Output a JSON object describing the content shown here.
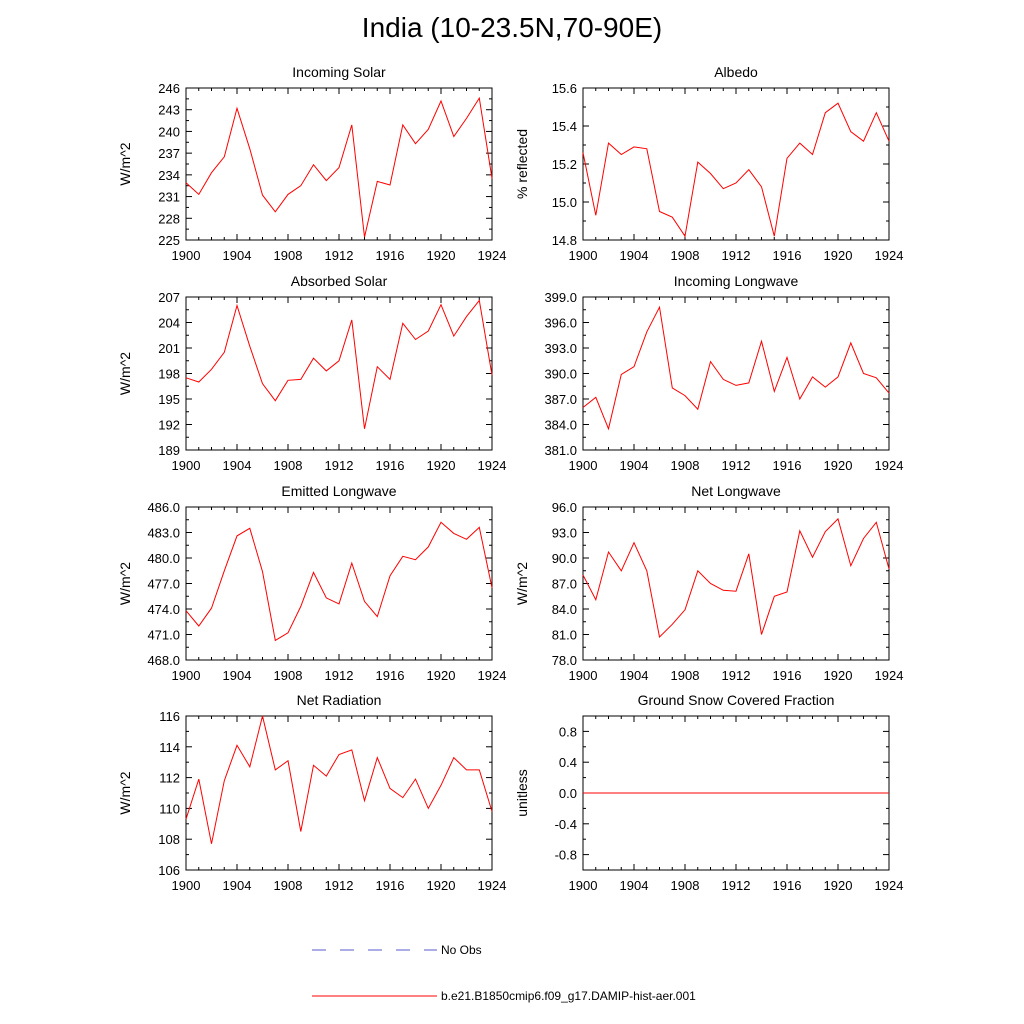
{
  "title": "India (10-23.5N,70-90E)",
  "legend": {
    "obs_label": "No Obs",
    "obs_color": "#5a5acd",
    "model_label": "b.e21.B1850cmip6.f09_g17.DAMIP-hist-aer.001",
    "model_color": "#ff0000"
  },
  "chart_data": [
    {
      "type": "line",
      "title": "Incoming Solar",
      "ylabel": "W/m^2",
      "xlabel": "",
      "xlim": [
        1900,
        1924
      ],
      "ylim": [
        225,
        246
      ],
      "xticks": [
        "1900",
        "1904",
        "1908",
        "1912",
        "1916",
        "1920",
        "1924"
      ],
      "yticks": [
        "225",
        "228",
        "231",
        "234",
        "237",
        "240",
        "243",
        "246"
      ],
      "series": [
        {
          "name": "b.e21.B1850cmip6.f09_g17.DAMIP-hist-aer.001",
          "color": "#ff0000",
          "x": [
            1900,
            1901,
            1902,
            1903,
            1904,
            1905,
            1906,
            1907,
            1908,
            1909,
            1910,
            1911,
            1912,
            1913,
            1914,
            1915,
            1916,
            1917,
            1918,
            1919,
            1920,
            1921,
            1922,
            1923,
            1924
          ],
          "y": [
            232.9,
            231.3,
            234.3,
            236.5,
            243.2,
            237.6,
            231.2,
            228.9,
            231.3,
            232.5,
            235.4,
            233.2,
            235.0,
            240.9,
            225.4,
            233.1,
            232.6,
            240.9,
            238.3,
            240.3,
            244.2,
            239.3,
            241.8,
            244.6,
            233.5
          ]
        }
      ]
    },
    {
      "type": "line",
      "title": "Albedo",
      "ylabel": "% reflected",
      "xlabel": "",
      "xlim": [
        1900,
        1924
      ],
      "ylim": [
        14.8,
        15.6
      ],
      "xticks": [
        "1900",
        "1904",
        "1908",
        "1912",
        "1916",
        "1920",
        "1924"
      ],
      "yticks": [
        "14.8",
        "15.0",
        "15.2",
        "15.4",
        "15.6"
      ],
      "series": [
        {
          "name": "b.e21.B1850cmip6.f09_g17.DAMIP-hist-aer.001",
          "color": "#ff0000",
          "x": [
            1900,
            1901,
            1902,
            1903,
            1904,
            1905,
            1906,
            1907,
            1908,
            1909,
            1910,
            1911,
            1912,
            1913,
            1914,
            1915,
            1916,
            1917,
            1918,
            1919,
            1920,
            1921,
            1922,
            1923,
            1924
          ],
          "y": [
            15.26,
            14.93,
            15.31,
            15.25,
            15.29,
            15.28,
            14.95,
            14.92,
            14.82,
            15.21,
            15.15,
            15.07,
            15.1,
            15.17,
            15.08,
            14.82,
            15.23,
            15.31,
            15.25,
            15.47,
            15.52,
            15.37,
            15.32,
            15.47,
            15.32
          ]
        }
      ]
    },
    {
      "type": "line",
      "title": "Absorbed Solar",
      "ylabel": "W/m^2",
      "xlabel": "",
      "xlim": [
        1900,
        1924
      ],
      "ylim": [
        189,
        207
      ],
      "xticks": [
        "1900",
        "1904",
        "1908",
        "1912",
        "1916",
        "1920",
        "1924"
      ],
      "yticks": [
        "189",
        "192",
        "195",
        "198",
        "201",
        "204",
        "207"
      ],
      "series": [
        {
          "name": "b.e21.B1850cmip6.f09_g17.DAMIP-hist-aer.001",
          "color": "#ff0000",
          "x": [
            1900,
            1901,
            1902,
            1903,
            1904,
            1905,
            1906,
            1907,
            1908,
            1909,
            1910,
            1911,
            1912,
            1913,
            1914,
            1915,
            1916,
            1917,
            1918,
            1919,
            1920,
            1921,
            1922,
            1923,
            1924
          ],
          "y": [
            197.5,
            197.0,
            198.5,
            200.5,
            206.0,
            201.2,
            196.8,
            194.8,
            197.2,
            197.3,
            199.8,
            198.3,
            199.5,
            204.3,
            191.5,
            198.8,
            197.3,
            203.9,
            202.0,
            203.0,
            206.1,
            202.4,
            204.7,
            206.6,
            197.8
          ]
        }
      ]
    },
    {
      "type": "line",
      "title": "Incoming Longwave",
      "ylabel": "",
      "xlabel": "",
      "xlim": [
        1900,
        1924
      ],
      "ylim": [
        381.0,
        399.0
      ],
      "xticks": [
        "1900",
        "1904",
        "1908",
        "1912",
        "1916",
        "1920",
        "1924"
      ],
      "yticks": [
        "381.0",
        "384.0",
        "387.0",
        "390.0",
        "393.0",
        "396.0",
        "399.0"
      ],
      "series": [
        {
          "name": "b.e21.B1850cmip6.f09_g17.DAMIP-hist-aer.001",
          "color": "#ff0000",
          "x": [
            1900,
            1901,
            1902,
            1903,
            1904,
            1905,
            1906,
            1907,
            1908,
            1909,
            1910,
            1911,
            1912,
            1913,
            1914,
            1915,
            1916,
            1917,
            1918,
            1919,
            1920,
            1921,
            1922,
            1923,
            1924
          ],
          "y": [
            386.0,
            387.2,
            383.5,
            389.9,
            390.8,
            394.9,
            397.8,
            388.3,
            387.4,
            385.8,
            391.4,
            389.3,
            388.6,
            388.9,
            393.8,
            387.9,
            391.9,
            387.0,
            389.6,
            388.4,
            389.6,
            393.6,
            390.0,
            389.5,
            387.7
          ]
        }
      ]
    },
    {
      "type": "line",
      "title": "Emitted Longwave",
      "ylabel": "W/m^2",
      "xlabel": "",
      "xlim": [
        1900,
        1924
      ],
      "ylim": [
        468.0,
        486.0
      ],
      "xticks": [
        "1900",
        "1904",
        "1908",
        "1912",
        "1916",
        "1920",
        "1924"
      ],
      "yticks": [
        "468.0",
        "471.0",
        "474.0",
        "477.0",
        "480.0",
        "483.0",
        "486.0"
      ],
      "series": [
        {
          "name": "b.e21.B1850cmip6.f09_g17.DAMIP-hist-aer.001",
          "color": "#ff0000",
          "x": [
            1900,
            1901,
            1902,
            1903,
            1904,
            1905,
            1906,
            1907,
            1908,
            1909,
            1910,
            1911,
            1912,
            1913,
            1914,
            1915,
            1916,
            1917,
            1918,
            1919,
            1920,
            1921,
            1922,
            1923,
            1924
          ],
          "y": [
            473.8,
            472.0,
            474.1,
            478.5,
            482.6,
            483.5,
            478.4,
            470.3,
            471.2,
            474.3,
            478.3,
            475.3,
            474.6,
            479.4,
            474.9,
            473.1,
            477.9,
            480.2,
            479.8,
            481.3,
            484.2,
            482.9,
            482.2,
            483.6,
            476.5
          ]
        }
      ]
    },
    {
      "type": "line",
      "title": "Net Longwave",
      "ylabel": "W/m^2",
      "xlabel": "",
      "xlim": [
        1900,
        1924
      ],
      "ylim": [
        78.0,
        96.0
      ],
      "xticks": [
        "1900",
        "1904",
        "1908",
        "1912",
        "1916",
        "1920",
        "1924"
      ],
      "yticks": [
        "78.0",
        "81.0",
        "84.0",
        "87.0",
        "90.0",
        "93.0",
        "96.0"
      ],
      "series": [
        {
          "name": "b.e21.B1850cmip6.f09_g17.DAMIP-hist-aer.001",
          "color": "#ff0000",
          "x": [
            1900,
            1901,
            1902,
            1903,
            1904,
            1905,
            1906,
            1907,
            1908,
            1909,
            1910,
            1911,
            1912,
            1913,
            1914,
            1915,
            1916,
            1917,
            1918,
            1919,
            1920,
            1921,
            1922,
            1923,
            1924
          ],
          "y": [
            88.0,
            85.1,
            90.7,
            88.5,
            91.8,
            88.5,
            80.7,
            82.2,
            83.9,
            88.5,
            87.0,
            86.2,
            86.1,
            90.5,
            81.0,
            85.5,
            86.0,
            93.2,
            90.1,
            93.1,
            94.6,
            89.1,
            92.3,
            94.2,
            88.7
          ]
        }
      ]
    },
    {
      "type": "line",
      "title": "Net Radiation",
      "ylabel": "W/m^2",
      "xlabel": "",
      "xlim": [
        1900,
        1924
      ],
      "ylim": [
        106,
        116
      ],
      "xticks": [
        "1900",
        "1904",
        "1908",
        "1912",
        "1916",
        "1920",
        "1924"
      ],
      "yticks": [
        "106",
        "108",
        "110",
        "112",
        "114",
        "116"
      ],
      "series": [
        {
          "name": "b.e21.B1850cmip6.f09_g17.DAMIP-hist-aer.001",
          "color": "#ff0000",
          "x": [
            1900,
            1901,
            1902,
            1903,
            1904,
            1905,
            1906,
            1907,
            1908,
            1909,
            1910,
            1911,
            1912,
            1913,
            1914,
            1915,
            1916,
            1917,
            1918,
            1919,
            1920,
            1921,
            1922,
            1923,
            1924
          ],
          "y": [
            109.3,
            111.9,
            107.7,
            111.8,
            114.1,
            112.7,
            116.0,
            112.5,
            113.1,
            108.5,
            112.8,
            112.1,
            113.5,
            113.8,
            110.5,
            113.3,
            111.3,
            110.7,
            111.9,
            110.0,
            111.5,
            113.3,
            112.5,
            112.5,
            109.8
          ]
        }
      ]
    },
    {
      "type": "line",
      "title": "Ground Snow Covered Fraction",
      "ylabel": "unitless",
      "xlabel": "",
      "xlim": [
        1900,
        1924
      ],
      "ylim": [
        -1.0,
        1.0
      ],
      "xticks": [
        "1900",
        "1904",
        "1908",
        "1912",
        "1916",
        "1920",
        "1924"
      ],
      "yticks": [
        "-0.8",
        "-0.4",
        "0.0",
        "0.4",
        "0.8"
      ],
      "ytick_values": [
        -0.8,
        -0.4,
        0.0,
        0.4,
        0.8
      ],
      "series": [
        {
          "name": "b.e21.B1850cmip6.f09_g17.DAMIP-hist-aer.001",
          "color": "#ff0000",
          "x": [
            1900,
            1924
          ],
          "y": [
            0.0,
            0.0
          ]
        }
      ]
    }
  ]
}
